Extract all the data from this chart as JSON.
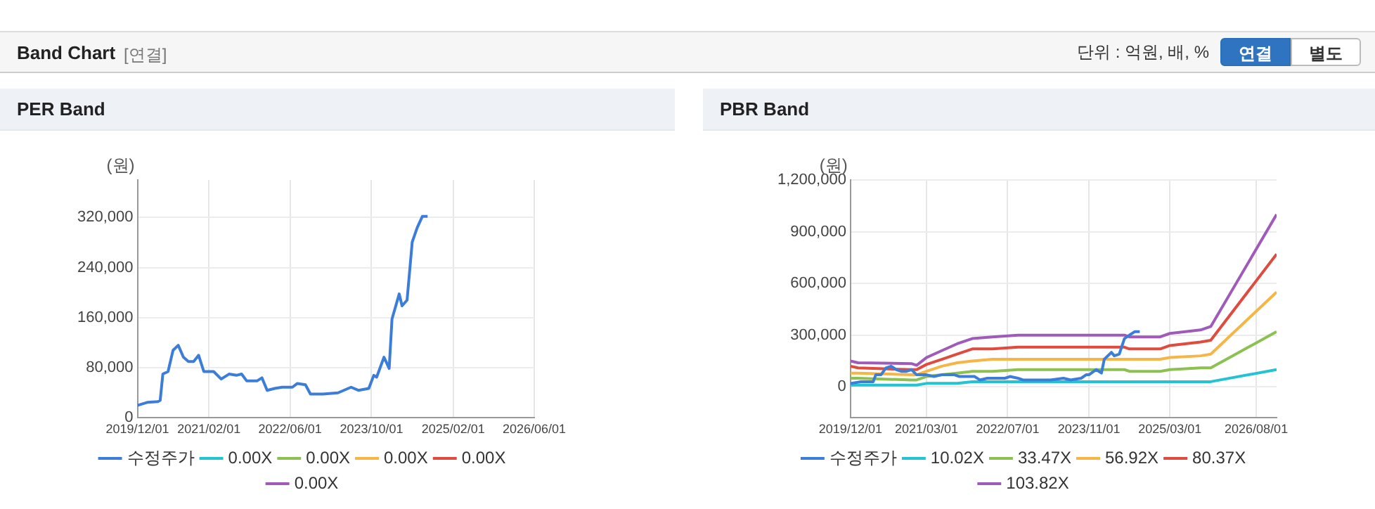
{
  "chart_data": [
    {
      "type": "other",
      "title": "Band Chart",
      "subtitle": "[연결]",
      "annotations": [
        "단위 : 억원, 배, %",
        "연결",
        "별도"
      ]
    },
    {
      "type": "line",
      "title": "PER Band",
      "ylabel": "(원)",
      "grid": true,
      "legend": "bottom",
      "xlim": [
        "2019-12-01",
        "2026-06-01"
      ],
      "xticks": [
        {
          "value": "2019-12-01",
          "label": "2019/12/01"
        },
        {
          "value": "2021-02-01",
          "label": "2021/02/01"
        },
        {
          "value": "2022-06-01",
          "label": "2022/06/01"
        },
        {
          "value": "2023-10-01",
          "label": "2023/10/01"
        },
        {
          "value": "2025-02-01",
          "label": "2025/02/01"
        },
        {
          "value": "2026-06-01",
          "label": "2026/06/01"
        }
      ],
      "ylim": [
        0,
        380000
      ],
      "yticks": [
        {
          "value": 0,
          "label": "0"
        },
        {
          "value": 80000,
          "label": "80,000"
        },
        {
          "value": 160000,
          "label": "160,000"
        },
        {
          "value": 240000,
          "label": "240,000"
        },
        {
          "value": 320000,
          "label": "320,000"
        }
      ],
      "series": [
        {
          "name": "수정주가",
          "color": "#3b7dd8",
          "x": [
            "2019-12-01",
            "2020-02-01",
            "2020-04-01",
            "2020-04-15",
            "2020-05-01",
            "2020-06-01",
            "2020-07-01",
            "2020-08-01",
            "2020-09-01",
            "2020-10-01",
            "2020-11-01",
            "2020-12-01",
            "2021-01-01",
            "2021-03-01",
            "2021-04-15",
            "2021-06-01",
            "2021-07-15",
            "2021-08-15",
            "2021-09-15",
            "2021-11-15",
            "2021-12-15",
            "2022-01-15",
            "2022-03-01",
            "2022-04-15",
            "2022-06-15",
            "2022-07-15",
            "2022-09-01",
            "2022-10-01",
            "2022-12-15",
            "2023-03-15",
            "2023-06-01",
            "2023-07-15",
            "2023-09-15",
            "2023-10-15",
            "2023-11-01",
            "2023-12-15",
            "2024-01-15",
            "2024-02-01",
            "2024-03-15",
            "2024-04-01",
            "2024-05-01",
            "2024-06-01",
            "2024-07-01",
            "2024-08-01",
            "2024-09-01"
          ],
          "values": [
            20000,
            25000,
            26000,
            28000,
            70000,
            74000,
            108000,
            116000,
            97000,
            90000,
            90000,
            100000,
            74000,
            74000,
            62000,
            70000,
            68000,
            70000,
            59000,
            59000,
            64000,
            44000,
            47000,
            49000,
            49000,
            55000,
            53000,
            38000,
            38000,
            40000,
            49000,
            44000,
            47000,
            68000,
            65000,
            97000,
            79000,
            158000,
            198000,
            179000,
            188000,
            281000,
            304000,
            322000,
            322000
          ]
        },
        {
          "name": "0.00X",
          "color": "#22c3d2"
        },
        {
          "name": "0.00X",
          "color": "#8cc152"
        },
        {
          "name": "0.00X",
          "color": "#f6b545"
        },
        {
          "name": "0.00X",
          "color": "#e04b3f"
        },
        {
          "name": "0.00X",
          "color": "#a05aba"
        }
      ]
    },
    {
      "type": "line",
      "title": "PBR Band",
      "ylabel": "(원)",
      "grid": true,
      "legend": "bottom",
      "xlim": [
        "2019-12-01",
        "2026-12-01"
      ],
      "xticks": [
        {
          "value": "2019-12-01",
          "label": "2019/12/01"
        },
        {
          "value": "2021-03-01",
          "label": "2021/03/01"
        },
        {
          "value": "2022-07-01",
          "label": "2022/07/01"
        },
        {
          "value": "2023-11-01",
          "label": "2023/11/01"
        },
        {
          "value": "2025-03-01",
          "label": "2025/03/01"
        },
        {
          "value": "2026-08-01",
          "label": "2026/08/01"
        }
      ],
      "ylim": [
        -180000,
        1200000
      ],
      "yticks": [
        {
          "value": 0,
          "label": "0"
        },
        {
          "value": 300000,
          "label": "300,000"
        },
        {
          "value": 600000,
          "label": "600,000"
        },
        {
          "value": 900000,
          "label": "900,000"
        },
        {
          "value": 1200000,
          "label": "1,200,000"
        }
      ],
      "x": [
        "2019-12-01",
        "2020-01-15",
        "2020-12-01",
        "2021-01-01",
        "2021-03-01",
        "2021-06-01",
        "2021-09-01",
        "2021-12-01",
        "2022-04-01",
        "2022-09-01",
        "2024-06-01",
        "2024-07-01",
        "2025-01-01",
        "2025-03-01",
        "2025-09-01",
        "2025-11-01",
        "2026-12-01"
      ],
      "series": [
        {
          "name": "수정주가",
          "color": "#3b7dd8",
          "x": [
            "2019-12-01",
            "2020-02-01",
            "2020-04-01",
            "2020-04-15",
            "2020-05-01",
            "2020-06-01",
            "2020-07-01",
            "2020-08-01",
            "2020-09-01",
            "2020-10-01",
            "2020-11-01",
            "2020-12-01",
            "2021-01-01",
            "2021-03-01",
            "2021-04-15",
            "2021-06-01",
            "2021-07-15",
            "2021-08-15",
            "2021-09-15",
            "2021-11-15",
            "2021-12-15",
            "2022-01-15",
            "2022-03-01",
            "2022-04-15",
            "2022-06-15",
            "2022-07-15",
            "2022-09-01",
            "2022-10-01",
            "2022-12-15",
            "2023-03-15",
            "2023-06-01",
            "2023-07-15",
            "2023-09-15",
            "2023-10-15",
            "2023-11-01",
            "2023-12-15",
            "2024-01-15",
            "2024-02-01",
            "2024-03-15",
            "2024-04-01",
            "2024-05-01",
            "2024-06-01",
            "2024-07-01",
            "2024-08-01",
            "2024-09-01"
          ],
          "values": [
            20000,
            30000,
            30000,
            30000,
            70000,
            70000,
            110000,
            120000,
            100000,
            90000,
            90000,
            100000,
            70000,
            70000,
            60000,
            70000,
            70000,
            70000,
            60000,
            60000,
            60000,
            40000,
            50000,
            50000,
            50000,
            60000,
            50000,
            40000,
            40000,
            40000,
            50000,
            40000,
            50000,
            70000,
            70000,
            100000,
            80000,
            160000,
            200000,
            180000,
            190000,
            280000,
            300000,
            320000,
            320000
          ]
        },
        {
          "name": "10.02X",
          "color": "#22c3d2",
          "values": [
            10000,
            10000,
            10000,
            10000,
            20000,
            20000,
            20000,
            30000,
            30000,
            30000,
            30000,
            30000,
            30000,
            30000,
            30000,
            30000,
            100000
          ]
        },
        {
          "name": "33.47X",
          "color": "#8cc152",
          "values": [
            50000,
            50000,
            40000,
            40000,
            60000,
            70000,
            80000,
            90000,
            90000,
            100000,
            100000,
            90000,
            90000,
            100000,
            110000,
            110000,
            320000
          ]
        },
        {
          "name": "56.92X",
          "color": "#f6b545",
          "values": [
            80000,
            80000,
            70000,
            70000,
            90000,
            120000,
            140000,
            150000,
            160000,
            160000,
            160000,
            160000,
            160000,
            170000,
            180000,
            190000,
            550000
          ]
        },
        {
          "name": "80.37X",
          "color": "#e04b3f",
          "values": [
            120000,
            110000,
            100000,
            100000,
            130000,
            160000,
            190000,
            220000,
            220000,
            230000,
            230000,
            220000,
            220000,
            240000,
            260000,
            270000,
            770000
          ]
        },
        {
          "name": "103.82X",
          "color": "#a05aba",
          "values": [
            150000,
            140000,
            135000,
            125000,
            170000,
            210000,
            250000,
            280000,
            290000,
            300000,
            300000,
            290000,
            290000,
            310000,
            330000,
            350000,
            1000000
          ]
        }
      ]
    }
  ]
}
